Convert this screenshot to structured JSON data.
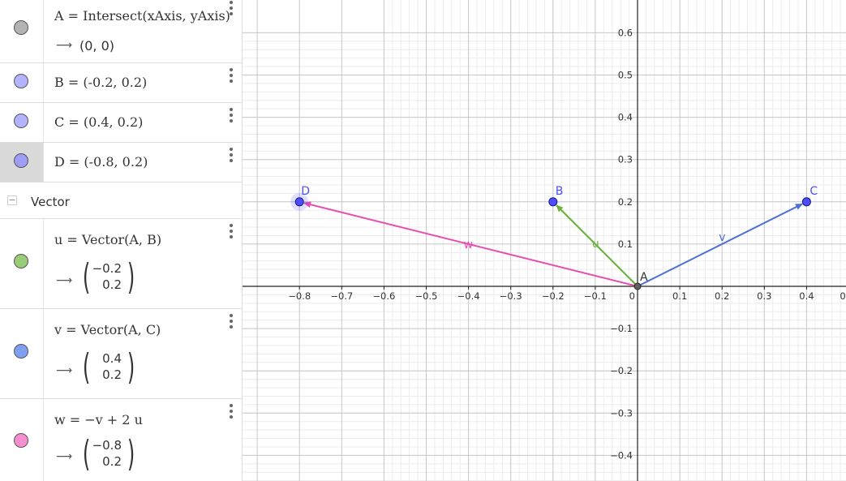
{
  "algebra": {
    "items": [
      {
        "definition": "A = Intersect(xAxis, yAxis)",
        "value": "(0, 0)",
        "color": "#b3b3b3"
      },
      {
        "definition": "B = (-0.2, 0.2)",
        "color": "#b3b3ff"
      },
      {
        "definition": "C = (0.4, 0.2)",
        "color": "#b3b3ff"
      },
      {
        "definition": "D = (-0.8, 0.2)",
        "color": "#9e9ef5"
      }
    ],
    "group_label": "Vector",
    "vectors": [
      {
        "definition": "u = Vector(A, B)",
        "x": "−0.2",
        "y": "0.2",
        "color": "#99cc77"
      },
      {
        "definition": "v = Vector(A, C)",
        "x": "0.4",
        "y": "0.2",
        "color": "#7f9ff0"
      },
      {
        "definition": "w = −v + 2 u",
        "x": "−0.8",
        "y": "0.2",
        "color": "#f58fd0"
      }
    ],
    "output_arrow": "⟶"
  },
  "graph": {
    "x_ticks": [
      "−0.8",
      "−0.7",
      "−0.6",
      "−0.5",
      "−0.4",
      "−0.3",
      "−0.2",
      "−0.1",
      "0",
      "0.1",
      "0.2",
      "0.3",
      "0.4",
      "0"
    ],
    "y_ticks_pos": [
      "0.6",
      "0.5",
      "0.4",
      "0.3",
      "0.2",
      "0.1"
    ],
    "y_ticks_neg": [
      "−0.1",
      "−0.2",
      "−0.3",
      "−0.4"
    ],
    "point_labels": {
      "A": "A",
      "B": "B",
      "C": "C",
      "D": "D"
    },
    "vector_labels": {
      "u": "u",
      "v": "v",
      "w": "w"
    },
    "colors": {
      "u": "#6cb33f",
      "v": "#4f6fd6",
      "w": "#e64bb0",
      "point_fill": "#4d4dff",
      "point_label": "#4d4dff"
    }
  }
}
